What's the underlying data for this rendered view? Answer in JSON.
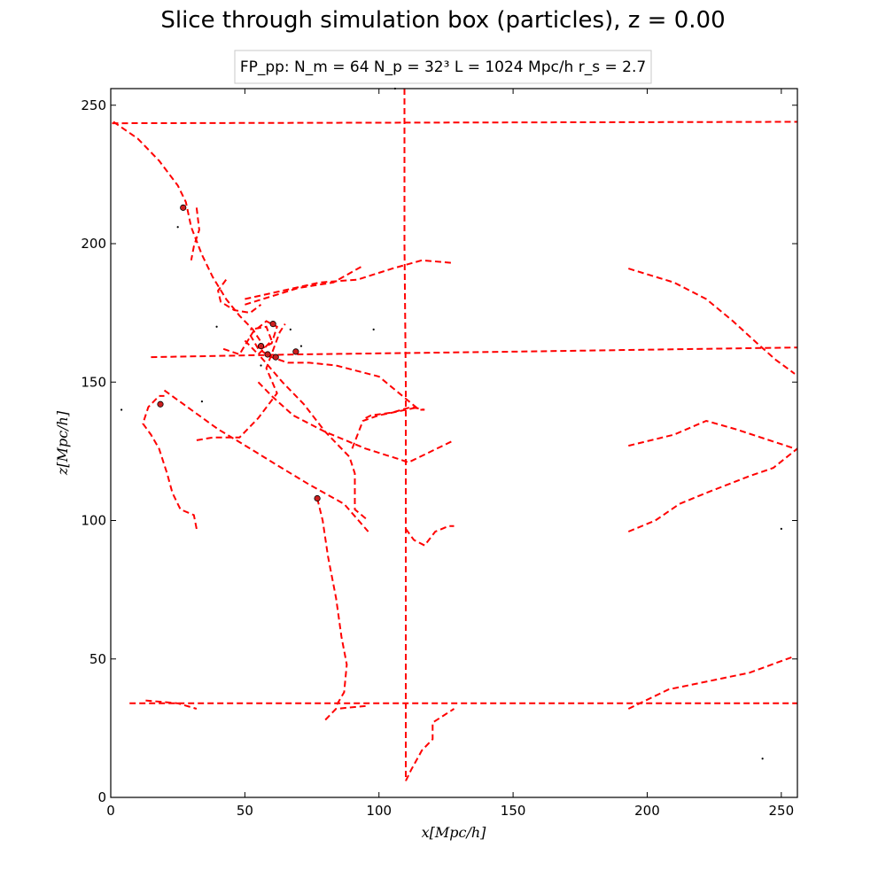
{
  "chart_data": {
    "type": "scatter",
    "title": "Slice through simulation box (particles), z = 0.00",
    "legend_box": "FP_pp:  N_m = 64   N_p = 32³    L = 1024 Mpc/h   r_s = 2.7",
    "xlabel": "x[Mpc/h]",
    "ylabel": "z[Mpc/h]",
    "xlim": [
      0,
      256
    ],
    "ylim": [
      0,
      256
    ],
    "xticks": [
      "0",
      "50",
      "100",
      "150",
      "200",
      "250"
    ],
    "xtick_values": [
      0,
      50,
      100,
      150,
      200,
      250
    ],
    "yticks": [
      "0",
      "50",
      "100",
      "150",
      "200",
      "250"
    ],
    "ytick_values": [
      0,
      50,
      100,
      150,
      200,
      250
    ],
    "grid": false,
    "colors": {
      "trajectory": "#ff0000",
      "particle_fill": "#cc1f1f",
      "particle_edge": "#000000",
      "small_point": "#000000"
    },
    "series": [
      {
        "kind": "trajectories",
        "style": "dashed",
        "lines": [
          [
            [
              0.5,
              243.5
            ],
            [
              256,
              244
            ]
          ],
          [
            [
              7,
              34
            ],
            [
              256,
              34
            ]
          ],
          [
            [
              109.5,
              256
            ],
            [
              109.5,
              200
            ],
            [
              110,
              150
            ],
            [
              110,
              100
            ],
            [
              110,
              50
            ],
            [
              110,
              6
            ]
          ],
          [
            [
              15,
              159
            ],
            [
              70,
              160
            ],
            [
              150,
              161
            ],
            [
              256,
              162.5
            ]
          ],
          [
            [
              1,
              244
            ],
            [
              10,
              238
            ],
            [
              18,
              230
            ],
            [
              25,
              221
            ],
            [
              28,
              215
            ],
            [
              30,
              206
            ],
            [
              34,
              196
            ],
            [
              38,
              188
            ],
            [
              43,
              180
            ],
            [
              48,
              174
            ],
            [
              53,
              169
            ],
            [
              57,
              163
            ]
          ],
          [
            [
              32,
              213
            ],
            [
              33,
              205
            ],
            [
              31,
              199
            ],
            [
              30,
              194
            ]
          ],
          [
            [
              193,
              191
            ],
            [
              210,
              186
            ],
            [
              222,
              180
            ],
            [
              232,
              172
            ],
            [
              241,
              164
            ],
            [
              248,
              158
            ],
            [
              255,
              153
            ]
          ],
          [
            [
              193,
              127
            ],
            [
              210,
              131
            ],
            [
              222,
              136
            ],
            [
              233,
              133
            ],
            [
              255,
              126
            ]
          ],
          [
            [
              193,
              96
            ],
            [
              203,
              100
            ],
            [
              212,
              106
            ],
            [
              222,
              110
            ],
            [
              238,
              116
            ],
            [
              247,
              119
            ],
            [
              256,
              126
            ]
          ],
          [
            [
              193,
              32
            ],
            [
              208,
              39
            ],
            [
              218,
              41
            ],
            [
              228,
              43
            ],
            [
              238,
              45
            ],
            [
              255,
              51
            ]
          ],
          [
            [
              13,
              35
            ],
            [
              25,
              34
            ],
            [
              32,
              32
            ]
          ],
          [
            [
              80,
              28
            ],
            [
              84,
              32
            ],
            [
              95,
              33
            ]
          ],
          [
            [
              110,
              6
            ],
            [
              112,
              10
            ],
            [
              116,
              17
            ],
            [
              120,
              21
            ],
            [
              120,
              27
            ],
            [
              128,
              32
            ]
          ],
          [
            [
              32,
              97
            ],
            [
              31,
              102
            ],
            [
              26,
              104
            ],
            [
              23,
              110
            ],
            [
              21,
              117
            ],
            [
              18,
              126
            ],
            [
              15,
              131
            ],
            [
              12,
              135
            ],
            [
              14,
              141
            ],
            [
              18,
              145
            ],
            [
              20,
              145
            ]
          ],
          [
            [
              43,
              187
            ],
            [
              40,
              183
            ],
            [
              41,
              179
            ],
            [
              46,
              176
            ],
            [
              52,
              175
            ],
            [
              56,
              178
            ]
          ],
          [
            [
              50,
              180
            ],
            [
              64,
              183
            ],
            [
              78,
              186
            ],
            [
              92,
              187
            ],
            [
              105,
              191
            ],
            [
              116,
              194
            ],
            [
              128,
              193
            ]
          ],
          [
            [
              50,
              178
            ],
            [
              60,
              181
            ],
            [
              70,
              184
            ],
            [
              83,
              186
            ],
            [
              94,
              192
            ]
          ],
          [
            [
              52,
              167
            ],
            [
              55,
              162
            ],
            [
              60,
              159
            ],
            [
              66,
              157
            ],
            [
              74,
              157
            ],
            [
              84,
              156
            ],
            [
              100,
              152
            ],
            [
              115,
              140
            ],
            [
              117,
              140
            ]
          ],
          [
            [
              55,
              150
            ],
            [
              60,
              145
            ],
            [
              68,
              138
            ],
            [
              80,
              132
            ],
            [
              95,
              126
            ],
            [
              108,
              122
            ],
            [
              111,
              121
            ],
            [
              128,
              129
            ]
          ],
          [
            [
              32,
              129
            ],
            [
              38,
              130
            ],
            [
              48,
              130
            ],
            [
              55,
              137
            ],
            [
              62,
              146
            ],
            [
              58,
              155
            ],
            [
              63,
              168
            ],
            [
              65,
              171
            ]
          ],
          [
            [
              20,
              147
            ],
            [
              30,
              140
            ],
            [
              40,
              133
            ],
            [
              52,
              126
            ],
            [
              62,
              120
            ],
            [
              74,
              113
            ],
            [
              87,
              106
            ],
            [
              96,
              96
            ]
          ],
          [
            [
              56,
              159
            ],
            [
              64,
              150
            ],
            [
              72,
              142
            ],
            [
              80,
              132
            ],
            [
              89,
              123
            ],
            [
              91,
              117
            ],
            [
              91,
              104
            ],
            [
              96,
              100
            ]
          ],
          [
            [
              42,
              162
            ],
            [
              48,
              160
            ],
            [
              53,
              168
            ],
            [
              58,
              172
            ],
            [
              62,
              170
            ],
            [
              60,
              164
            ],
            [
              56,
              162
            ]
          ],
          [
            [
              50,
              165
            ],
            [
              55,
              160
            ],
            [
              60,
              165
            ],
            [
              58,
              170
            ],
            [
              52,
              169
            ]
          ],
          [
            [
              77,
              108
            ],
            [
              79,
              100
            ],
            [
              81,
              87
            ],
            [
              84,
              72
            ],
            [
              86,
              58
            ],
            [
              88,
              48
            ],
            [
              87,
              38
            ],
            [
              84,
              33
            ]
          ],
          [
            [
              95,
              137
            ],
            [
              97,
              138
            ],
            [
              105,
              139
            ],
            [
              112,
              141
            ],
            [
              117,
              140
            ]
          ],
          [
            [
              90,
              126
            ],
            [
              94,
              136
            ],
            [
              100,
              138
            ],
            [
              115,
              141
            ]
          ],
          [
            [
              110,
              97
            ],
            [
              113,
              93
            ],
            [
              117,
              91
            ],
            [
              121,
              96
            ],
            [
              126,
              98
            ],
            [
              128,
              98
            ]
          ]
        ]
      },
      {
        "kind": "particles",
        "points": [
          [
            27,
            213
          ],
          [
            18.5,
            142
          ],
          [
            77,
            108
          ],
          [
            60.5,
            171
          ],
          [
            56,
            163
          ],
          [
            58.5,
            160
          ],
          [
            61.5,
            159
          ],
          [
            69,
            161
          ]
        ]
      },
      {
        "kind": "small-points",
        "points": [
          [
            25,
            206
          ],
          [
            39.5,
            170
          ],
          [
            67,
            169
          ],
          [
            71,
            163
          ],
          [
            98,
            169
          ],
          [
            56,
            156
          ],
          [
            34,
            143
          ],
          [
            4,
            140
          ],
          [
            250,
            97
          ],
          [
            243,
            14
          ],
          [
            106,
            256
          ]
        ]
      }
    ]
  }
}
